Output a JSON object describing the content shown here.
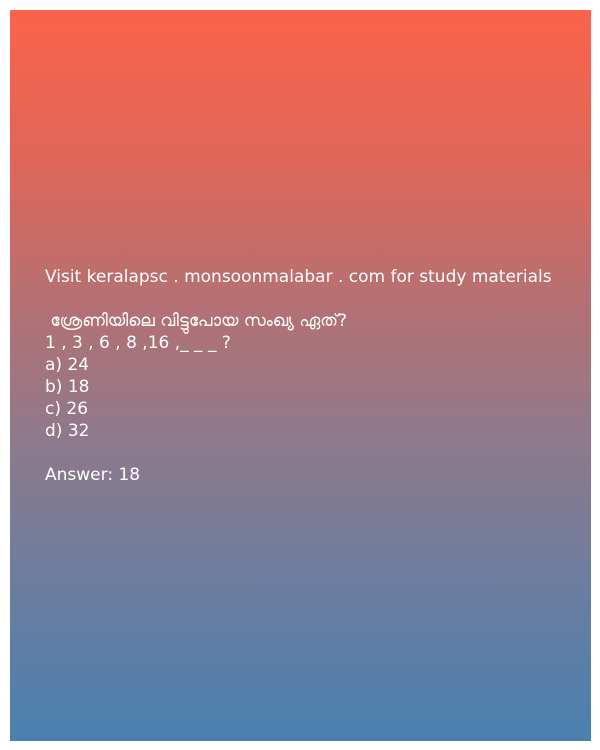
{
  "post": {
    "promo": "Visit keralapsc . monsoonmalabar . com for study materials",
    "question": " ശ്രേണിയിലെ വിട്ടുപോയ സംഖ്യ ഏത്?",
    "series": "1 , 3 , 6 , 8 ,16 ,_ _ _ ?",
    "options": [
      "a) 24",
      "b) 18",
      "c) 26",
      "d) 32"
    ],
    "answer": "Answer: 18"
  },
  "colors": {
    "gradient_top": "#fb634a",
    "gradient_bottom": "#4a80b0",
    "text": "#ffffff"
  }
}
